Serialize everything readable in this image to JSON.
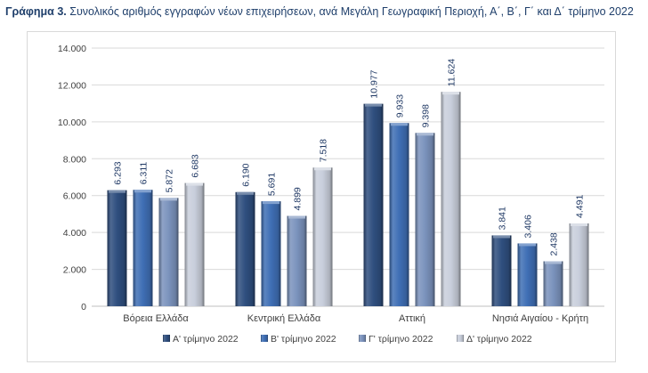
{
  "title": {
    "prefix": "Γράφημα 3.",
    "text": " Συνολικός αριθμός εγγραφών νέων επιχειρήσεων, ανά Μεγάλη Γεωγραφική Περιοχή, Α΄, Β΄, Γ΄ και Δ΄ τρίμηνο 2022"
  },
  "chart_data": {
    "type": "bar",
    "title": "",
    "xlabel": "",
    "ylabel": "",
    "ylim": [
      0,
      14000
    ],
    "yticks": [
      0,
      2000,
      4000,
      6000,
      8000,
      10000,
      12000,
      14000
    ],
    "ytick_labels": [
      "0",
      "2.000",
      "4.000",
      "6.000",
      "8.000",
      "10.000",
      "12.000",
      "14.000"
    ],
    "grid": true,
    "legend_position": "bottom",
    "categories": [
      "Βόρεια Ελλάδα",
      "Κεντρική Ελλάδα",
      "Αττική",
      "Νησιά Αιγαίου - Κρήτη"
    ],
    "series": [
      {
        "name": "Α' τρίμηνο 2022",
        "values": [
          6293,
          6190,
          10977,
          3841
        ],
        "labels": [
          "6.293",
          "6.190",
          "10.977",
          "3.841"
        ],
        "color": "#2f4f7f"
      },
      {
        "name": "Β' τρίμηνο 2022",
        "values": [
          6311,
          5691,
          9933,
          3406
        ],
        "labels": [
          "6.311",
          "5.691",
          "9.933",
          "3.406"
        ],
        "color": "#3f6fb5"
      },
      {
        "name": "Γ' τρίμηνο 2022",
        "values": [
          5872,
          4899,
          9398,
          2438
        ],
        "labels": [
          "5.872",
          "4.899",
          "9.398",
          "2.438"
        ],
        "color": "#7b93bd"
      },
      {
        "name": "Δ' τρίμηνο 2022",
        "values": [
          6683,
          7518,
          11624,
          4491
        ],
        "labels": [
          "6.683",
          "7.518",
          "11.624",
          "4.491"
        ],
        "color": "#c9cfdc"
      }
    ]
  }
}
